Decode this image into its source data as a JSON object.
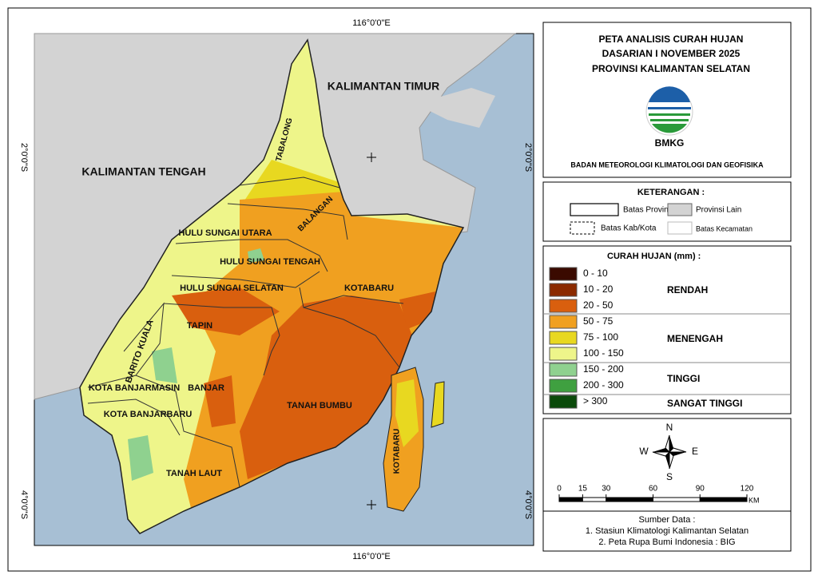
{
  "coordinates": {
    "top": "116°0'0\"E",
    "bottom": "116°0'0\"E",
    "left_top": "2°0'0\"S",
    "right_top": "2°0'0\"S",
    "left_bottom": "4°0'0\"S",
    "right_bottom": "4°0'0\"S"
  },
  "map_labels": [
    "KALIMANTAN TIMUR",
    "KALIMANTAN TENGAH",
    "TABALONG",
    "BALANGAN",
    "HULU SUNGAI UTARA",
    "HULU SUNGAI TENGAH",
    "HULU SUNGAI SELATAN",
    "KOTABARU",
    "TAPIN",
    "BARITO KUALA",
    "KOTA BANJARMASIN",
    "BANJAR",
    "KOTA BANJARBARU",
    "TANAH BUMBU",
    "TANAH LAUT",
    "KOTABARU"
  ],
  "title": {
    "lines": [
      "PETA ANALISIS CURAH HUJAN",
      "DASARIAN I NOVEMBER 2025",
      "PROVINSI KALIMANTAN SELATAN"
    ],
    "logo_text": "BMKG",
    "agency": "BADAN METEOROLOGI KLIMATOLOGI DAN GEOFISIKA"
  },
  "keterangan": {
    "title": "KETERANGAN :",
    "items": [
      "Batas Provinsi",
      "Provinsi Lain",
      "Batas Kab/Kota",
      "Batas Kecamatan"
    ]
  },
  "rainfall_legend": {
    "title": "CURAH HUJAN (mm) :",
    "classes": [
      {
        "label": "0 - 10",
        "color": "#3a0a00"
      },
      {
        "label": "10 - 20",
        "color": "#8b2a00"
      },
      {
        "label": "20 - 50",
        "color": "#d95f0e"
      },
      {
        "label": "50 - 75",
        "color": "#f0a020"
      },
      {
        "label": "75 - 100",
        "color": "#e8d820"
      },
      {
        "label": "100 - 150",
        "color": "#eef58a"
      },
      {
        "label": "150 - 200",
        "color": "#8fd18f"
      },
      {
        "label": "200 - 300",
        "color": "#3fa040"
      },
      {
        "label": "> 300",
        "color": "#0a4a0a"
      }
    ],
    "groups": [
      "RENDAH",
      "MENENGAH",
      "TINGGI",
      "SANGAT TINGGI"
    ]
  },
  "compass": {
    "n": "N",
    "e": "E",
    "s": "S",
    "w": "W"
  },
  "scale": {
    "ticks": [
      0,
      15,
      30,
      60,
      90,
      120
    ],
    "unit": "KM"
  },
  "source": {
    "title": "Sumber Data :",
    "items": [
      "1. Stasiun Klimatologi Kalimantan Selatan",
      "2. Peta Rupa Bumi Indonesia : BIG"
    ]
  }
}
